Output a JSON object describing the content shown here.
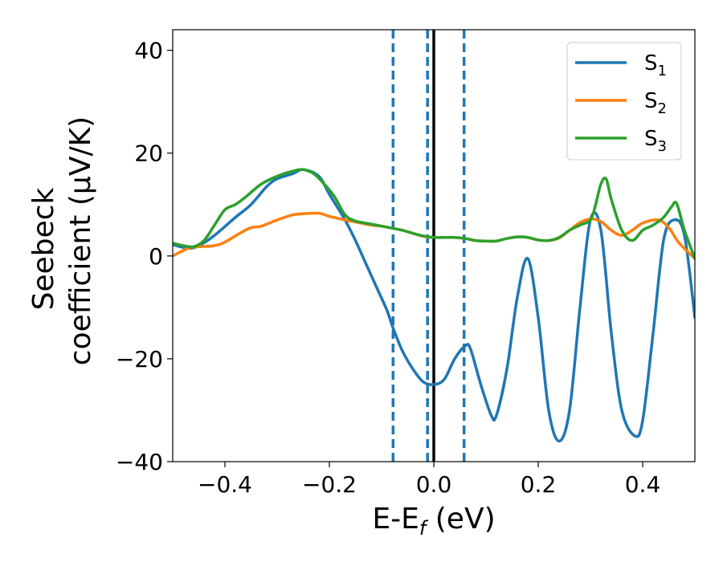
{
  "chart_data": {
    "type": "line",
    "xlabel": "E-E_f (eV)",
    "xlabel_main": "E-E",
    "xlabel_sub": "f",
    "xlabel_tail": " (eV)",
    "ylabel_line1": "Seebeck",
    "ylabel_line2": "coefficient  (μV/K)",
    "xlim": [
      -0.5,
      0.5
    ],
    "ylim": [
      -40,
      44
    ],
    "x_ticks": [
      -0.4,
      -0.2,
      0.0,
      0.2,
      0.4
    ],
    "x_tick_labels": [
      "−0.4",
      "−0.2",
      "0.0",
      "0.2",
      "0.4"
    ],
    "y_ticks": [
      -40,
      -20,
      0,
      20,
      40
    ],
    "y_tick_labels": [
      "−40",
      "−20",
      "0",
      "20",
      "40"
    ],
    "grid": false,
    "legend_position": "top-right",
    "vertical_lines": [
      {
        "x": -0.078,
        "style": "dashed",
        "color": "#1f77b4"
      },
      {
        "x": -0.012,
        "style": "dashed",
        "color": "#1f77b4"
      },
      {
        "x": 0.0,
        "style": "solid",
        "color": "#000000"
      },
      {
        "x": 0.058,
        "style": "dashed",
        "color": "#1f77b4"
      }
    ],
    "series": [
      {
        "name": "S1",
        "label_main": "S",
        "label_sub": "1",
        "color": "#1f77b4",
        "x": [
          -0.5,
          -0.47,
          -0.45,
          -0.42,
          -0.38,
          -0.35,
          -0.32,
          -0.3,
          -0.27,
          -0.25,
          -0.22,
          -0.2,
          -0.17,
          -0.15,
          -0.13,
          -0.11,
          -0.09,
          -0.078,
          -0.06,
          -0.04,
          -0.02,
          0.0,
          0.02,
          0.04,
          0.06,
          0.07,
          0.09,
          0.11,
          0.12,
          0.14,
          0.16,
          0.18,
          0.2,
          0.22,
          0.24,
          0.26,
          0.28,
          0.3,
          0.32,
          0.34,
          0.36,
          0.385,
          0.4,
          0.42,
          0.44,
          0.46,
          0.48,
          0.5
        ],
        "y": [
          2.2,
          1.5,
          2.0,
          4.0,
          7.5,
          10.0,
          13.5,
          15.0,
          16.0,
          16.8,
          15.5,
          12.0,
          7.0,
          3.0,
          -1.5,
          -6.0,
          -10.5,
          -14.0,
          -18.5,
          -22.0,
          -24.5,
          -25.0,
          -24.0,
          -20.0,
          -17.5,
          -18.0,
          -25.0,
          -31.0,
          -31.0,
          -22.0,
          -8.0,
          -0.5,
          -12.0,
          -30.0,
          -36.0,
          -30.0,
          -10.0,
          7.0,
          5.0,
          -15.0,
          -30.0,
          -35.0,
          -32.0,
          -15.0,
          3.0,
          7.0,
          4.0,
          -12.0
        ]
      },
      {
        "name": "S2",
        "label_main": "S",
        "label_sub": "2",
        "color": "#ff7f0e",
        "x": [
          -0.5,
          -0.47,
          -0.45,
          -0.42,
          -0.4,
          -0.37,
          -0.35,
          -0.33,
          -0.3,
          -0.27,
          -0.25,
          -0.22,
          -0.2,
          -0.17,
          -0.15,
          -0.12,
          -0.1,
          -0.08,
          -0.06,
          -0.04,
          -0.02,
          0.0,
          0.02,
          0.04,
          0.06,
          0.08,
          0.1,
          0.12,
          0.14,
          0.16,
          0.18,
          0.2,
          0.22,
          0.24,
          0.26,
          0.28,
          0.3,
          0.32,
          0.34,
          0.36,
          0.38,
          0.4,
          0.43,
          0.45,
          0.47,
          0.5
        ],
        "y": [
          0.0,
          1.5,
          1.8,
          2.0,
          2.7,
          4.5,
          5.5,
          5.8,
          7.0,
          8.0,
          8.2,
          8.3,
          7.7,
          7.0,
          6.6,
          6.0,
          5.8,
          5.4,
          5.0,
          4.4,
          3.8,
          3.6,
          3.6,
          3.6,
          3.4,
          3.0,
          2.9,
          2.9,
          3.4,
          3.7,
          3.6,
          3.1,
          3.0,
          3.5,
          5.0,
          6.5,
          7.2,
          6.7,
          5.0,
          4.0,
          5.0,
          6.4,
          7.0,
          5.5,
          2.5,
          -0.5
        ]
      },
      {
        "name": "S3",
        "label_main": "S",
        "label_sub": "3",
        "color": "#2ca02c",
        "x": [
          -0.5,
          -0.48,
          -0.46,
          -0.44,
          -0.42,
          -0.4,
          -0.38,
          -0.36,
          -0.33,
          -0.3,
          -0.27,
          -0.25,
          -0.23,
          -0.21,
          -0.19,
          -0.17,
          -0.15,
          -0.12,
          -0.1,
          -0.08,
          -0.06,
          -0.04,
          -0.02,
          0.0,
          0.02,
          0.04,
          0.06,
          0.08,
          0.1,
          0.12,
          0.14,
          0.16,
          0.18,
          0.2,
          0.22,
          0.24,
          0.26,
          0.28,
          0.3,
          0.31,
          0.32,
          0.33,
          0.34,
          0.36,
          0.38,
          0.4,
          0.42,
          0.44,
          0.455,
          0.465,
          0.48,
          0.5
        ],
        "y": [
          2.5,
          2.0,
          1.8,
          3.0,
          6.0,
          9.0,
          10.0,
          11.5,
          14.0,
          15.5,
          16.5,
          16.8,
          16.0,
          14.0,
          11.5,
          8.0,
          6.8,
          6.2,
          5.8,
          5.4,
          5.0,
          4.4,
          3.9,
          3.6,
          3.6,
          3.6,
          3.4,
          3.0,
          2.9,
          2.9,
          3.4,
          3.7,
          3.6,
          3.1,
          3.0,
          3.6,
          5.0,
          6.0,
          7.0,
          10.0,
          14.0,
          15.0,
          11.0,
          5.0,
          3.0,
          5.0,
          6.0,
          7.5,
          9.5,
          10.2,
          5.0,
          -0.5
        ]
      }
    ]
  }
}
